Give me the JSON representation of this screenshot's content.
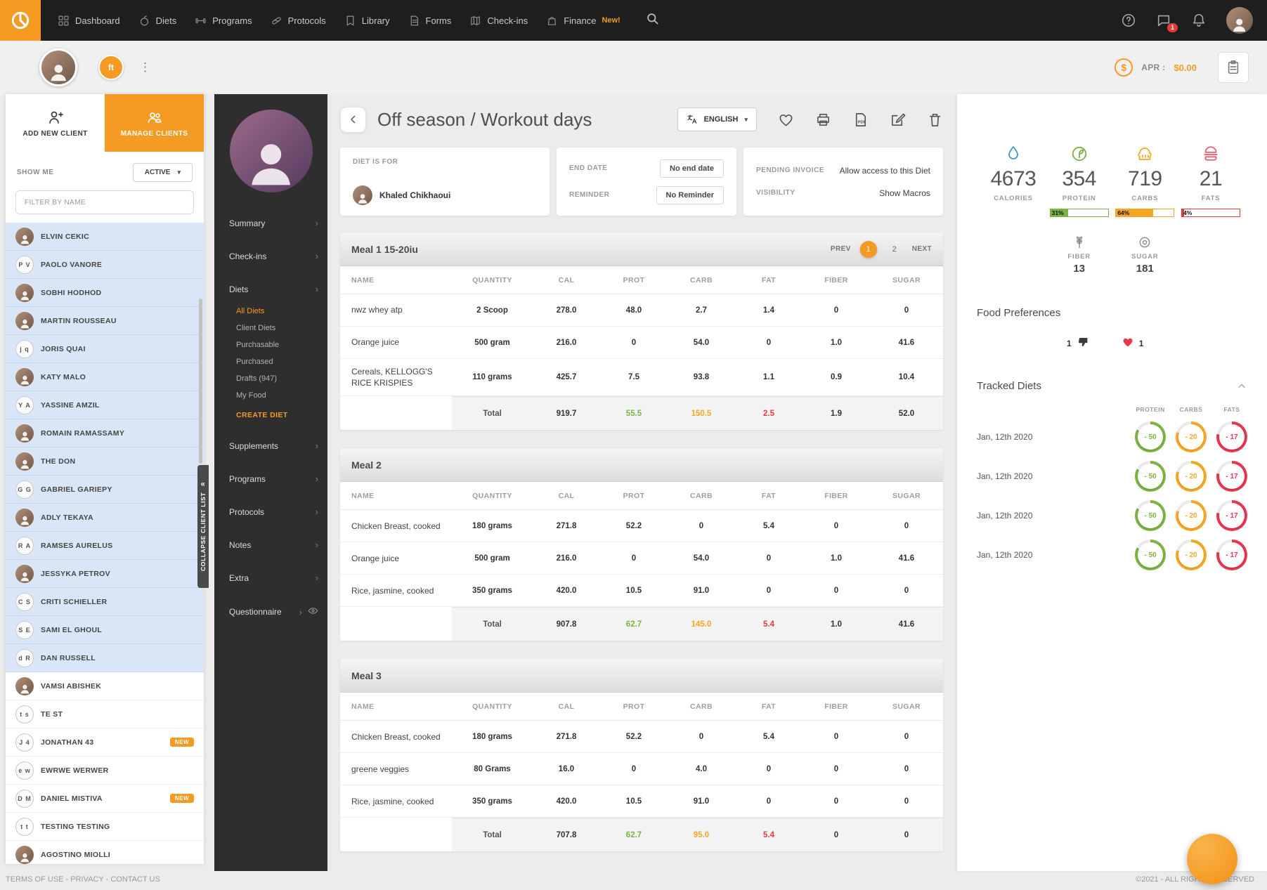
{
  "topnav": {
    "items": [
      {
        "label": "Dashboard"
      },
      {
        "label": "Diets"
      },
      {
        "label": "Programs"
      },
      {
        "label": "Protocols"
      },
      {
        "label": "Library"
      },
      {
        "label": "Forms"
      },
      {
        "label": "Check-ins"
      },
      {
        "label": "Finance",
        "badge": "New!"
      }
    ],
    "chat_badge": "1"
  },
  "userbar": {
    "client_chip": "ft",
    "apr_label": "APR :",
    "apr_value": "$0.00"
  },
  "client_sidebar": {
    "add_new_label": "ADD NEW CLIENT",
    "manage_label": "MANAGE CLIENTS",
    "show_me_label": "SHOW ME",
    "status_filter": "ACTIVE",
    "filter_placeholder": "FILTER BY NAME",
    "collapse_label": "COLLAPSE CLIENT LIST",
    "clients": [
      {
        "name": "ELVIN CEKIC",
        "photo": true,
        "selected": true
      },
      {
        "name": "PAOLO VANORE",
        "initials": "P V",
        "selected": true
      },
      {
        "name": "SOBHI HODHOD",
        "photo": true,
        "selected": true
      },
      {
        "name": "MARTIN ROUSSEAU",
        "photo": true,
        "selected": true
      },
      {
        "name": "JORIS QUAI",
        "initials": "j q",
        "selected": true
      },
      {
        "name": "KATY MALO",
        "photo": true,
        "selected": true
      },
      {
        "name": "YASSINE AMZIL",
        "initials": "Y A",
        "selected": true
      },
      {
        "name": "ROMAIN RAMASSAMY",
        "photo": true,
        "selected": true
      },
      {
        "name": "THE DON",
        "photo": true,
        "selected": true
      },
      {
        "name": "GABRIEL GARIEPY",
        "initials": "G G",
        "selected": true
      },
      {
        "name": "ADLY TEKAYA",
        "photo": true,
        "selected": true
      },
      {
        "name": "RAMSES AURELUS",
        "initials": "R A",
        "selected": true
      },
      {
        "name": "JESSYKA PETROV",
        "photo": true,
        "selected": true
      },
      {
        "name": "CRITI SCHIELLER",
        "initials": "C S",
        "selected": true
      },
      {
        "name": "SAMI EL GHOUL",
        "initials": "S E",
        "selected": true
      },
      {
        "name": "DAN RUSSELL",
        "initials": "d R",
        "selected": true
      },
      {
        "name": "VAMSI ABISHEK",
        "photo": true
      },
      {
        "name": "TE ST",
        "initials": "t s"
      },
      {
        "name": "JONATHAN 43",
        "initials": "J 4",
        "badge": "NEW"
      },
      {
        "name": "EWRWE WERWER",
        "initials": "e w"
      },
      {
        "name": "DANIEL MISTIVA",
        "initials": "D M",
        "badge": "NEW"
      },
      {
        "name": "TESTING TESTING",
        "initials": "t t"
      },
      {
        "name": "AGOSTINO MIOLLI",
        "photo": true
      }
    ]
  },
  "coach_nav": {
    "summary": "Summary",
    "checkins": "Check-ins",
    "diets": "Diets",
    "submenu": [
      {
        "label": "All Diets",
        "active": true
      },
      {
        "label": "Client Diets"
      },
      {
        "label": "Purchasable"
      },
      {
        "label": "Purchased"
      },
      {
        "label": "Drafts (947)"
      },
      {
        "label": "My Food"
      }
    ],
    "create_diet": "CREATE DIET",
    "supplements": "Supplements",
    "programs": "Programs",
    "protocols": "Protocols",
    "notes": "Notes",
    "extra": "Extra",
    "questionnaire": "Questionnaire"
  },
  "diet": {
    "title": "Off season / Workout days",
    "language": "ENGLISH",
    "info": {
      "diet_for_label": "DIET IS FOR",
      "client_name": "Khaled Chikhaoui",
      "end_date_label": "END DATE",
      "end_date_value": "No end date",
      "reminder_label": "REMINDER",
      "reminder_value": "No Reminder",
      "invoice_label": "PENDING INVOICE",
      "invoice_value": "Allow access to this Diet",
      "visibility_label": "VISIBILITY",
      "visibility_value": "Show Macros"
    }
  },
  "table_columns": [
    "NAME",
    "QUANTITY",
    "CAL",
    "PROT",
    "CARB",
    "FAT",
    "FIBER",
    "SUGAR"
  ],
  "meals": [
    {
      "title": "Meal 1 15-20iu",
      "pager": {
        "prev": "PREV",
        "page1": "1",
        "page2": "2",
        "next": "NEXT"
      },
      "rows": [
        {
          "name": "nwz whey atp",
          "qty": "2 Scoop",
          "cal": "278.0",
          "prot": "48.0",
          "carb": "2.7",
          "fat": "1.4",
          "fiber": "0",
          "sugar": "0"
        },
        {
          "name": "Orange juice",
          "qty": "500 gram",
          "cal": "216.0",
          "prot": "0",
          "carb": "54.0",
          "fat": "0",
          "fiber": "1.0",
          "sugar": "41.6"
        },
        {
          "name": "Cereals, KELLOGG'S RICE KRISPIES",
          "qty": "110 grams",
          "cal": "425.7",
          "prot": "7.5",
          "carb": "93.8",
          "fat": "1.1",
          "fiber": "0.9",
          "sugar": "10.4"
        }
      ],
      "total": {
        "label": "Total",
        "cal": "919.7",
        "prot": "55.5",
        "carb": "150.5",
        "fat": "2.5",
        "fiber": "1.9",
        "sugar": "52.0"
      }
    },
    {
      "title": "Meal 2",
      "rows": [
        {
          "name": "Chicken Breast, cooked",
          "qty": "180 grams",
          "cal": "271.8",
          "prot": "52.2",
          "carb": "0",
          "fat": "5.4",
          "fiber": "0",
          "sugar": "0"
        },
        {
          "name": "Orange juice",
          "qty": "500 gram",
          "cal": "216.0",
          "prot": "0",
          "carb": "54.0",
          "fat": "0",
          "fiber": "1.0",
          "sugar": "41.6"
        },
        {
          "name": "Rice, jasmine, cooked",
          "qty": "350 grams",
          "cal": "420.0",
          "prot": "10.5",
          "carb": "91.0",
          "fat": "0",
          "fiber": "0",
          "sugar": "0"
        }
      ],
      "total": {
        "label": "Total",
        "cal": "907.8",
        "prot": "62.7",
        "carb": "145.0",
        "fat": "5.4",
        "fiber": "1.0",
        "sugar": "41.6"
      }
    },
    {
      "title": "Meal 3",
      "rows": [
        {
          "name": "Chicken Breast, cooked",
          "qty": "180 grams",
          "cal": "271.8",
          "prot": "52.2",
          "carb": "0",
          "fat": "5.4",
          "fiber": "0",
          "sugar": "0"
        },
        {
          "name": "greene veggies",
          "qty": "80 Grams",
          "cal": "16.0",
          "prot": "0",
          "carb": "4.0",
          "fat": "0",
          "fiber": "0",
          "sugar": "0"
        },
        {
          "name": "Rice, jasmine, cooked",
          "qty": "350 grams",
          "cal": "420.0",
          "prot": "10.5",
          "carb": "91.0",
          "fat": "0",
          "fiber": "0",
          "sugar": "0"
        }
      ],
      "total": {
        "label": "Total",
        "cal": "707.8",
        "prot": "62.7",
        "carb": "95.0",
        "fat": "5.4",
        "fiber": "0",
        "sugar": "0"
      }
    }
  ],
  "macros": {
    "calories": {
      "value": "4673",
      "label": "CALORIES"
    },
    "protein": {
      "value": "354",
      "label": "PROTEIN",
      "pct_label": "31%",
      "pct": 31
    },
    "carbs": {
      "value": "719",
      "label": "CARBS",
      "pct_label": "64%",
      "pct": 64
    },
    "fats": {
      "value": "21",
      "label": "FATS",
      "pct_label": "4%",
      "pct": 4
    },
    "fiber": {
      "label": "FIBER",
      "value": "13"
    },
    "sugar": {
      "label": "SUGAR",
      "value": "181"
    }
  },
  "prefs": {
    "title": "Food Preferences",
    "dislikes": "1",
    "likes": "1"
  },
  "tracked": {
    "title": "Tracked Diets",
    "columns": [
      "PROTEIN",
      "CARBS",
      "FATS"
    ],
    "rows": [
      {
        "date": "Jan, 12th 2020",
        "protein": "- 50",
        "carbs": "- 20",
        "fats": "- 17"
      },
      {
        "date": "Jan, 12th 2020",
        "protein": "- 50",
        "carbs": "- 20",
        "fats": "- 17"
      },
      {
        "date": "Jan, 12th 2020",
        "protein": "- 50",
        "carbs": "- 20",
        "fats": "- 17"
      },
      {
        "date": "Jan, 12th 2020",
        "protein": "- 50",
        "carbs": "- 20",
        "fats": "- 17"
      }
    ]
  },
  "footer": {
    "left": "TERMS OF USE - PRIVACY - CONTACT US",
    "right": "©2021 - ALL RIGHTS RESERVED"
  }
}
